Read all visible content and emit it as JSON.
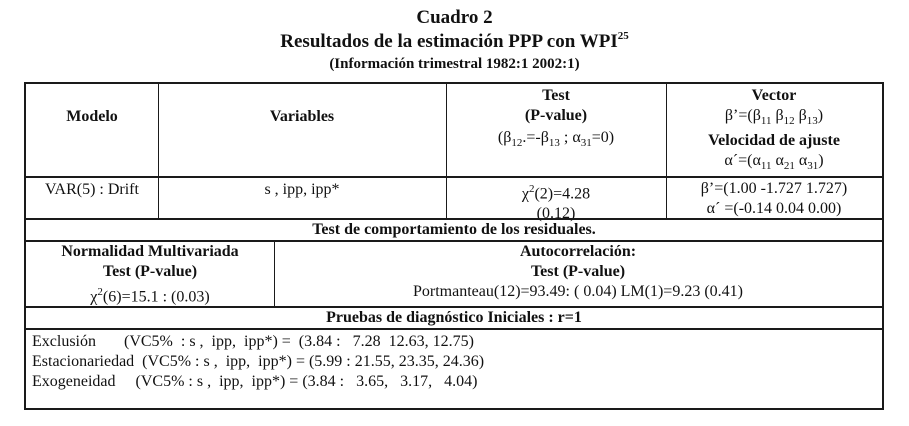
{
  "title": "Cuadro 2",
  "subtitle": "Resultados de la estimación PPP con WPI",
  "subtitle_footnote": "25",
  "period": "(Información trimestral 1982:1 2002:1)",
  "header": {
    "modelo": "Modelo",
    "variables": "Variables",
    "test_line1": "Test",
    "test_line2": "(P-value)",
    "test_line3": "(β12.=-β13 ; α31=0)",
    "vector_line1": "Vector",
    "vector_line2": "β’=(β11 β12 β13)",
    "vector_line3": "Velocidad de ajuste",
    "vector_line4": "α´=(α11 α21 α31)"
  },
  "row1": {
    "modelo": "VAR(5) : Drift",
    "variables": "s ,  ipp,  ipp*",
    "test_line1": "χ2(2)=4.28",
    "test_line2": "(0.12)",
    "vector_line1": "β’=(1.00  -1.727  1.727)",
    "vector_line2": "α´ =(-0.14  0.04  0.00)"
  },
  "residuales_header": "Test de comportamiento de los residuales.",
  "normalidad": {
    "title": "Normalidad Multivariada",
    "subtitle": "Test (P-value)",
    "value": "χ2(6)=15.1 : (0.03)"
  },
  "autocorrelacion": {
    "title": "Autocorrelación:",
    "subtitle": "Test (P-value)",
    "value": "Portmanteau(12)=93.49: ( 0.04)  LM(1)=9.23 (0.41)"
  },
  "diagnostico_header": "Pruebas de diagnóstico Iniciales  : r=1",
  "diagnostico": [
    "Exclusión       (VC5%  : s ,  ipp,  ipp*) =  (3.84 :   7.28  12.63, 12.75)",
    "Estacionariedad  (VC5% : s ,  ipp,  ipp*) = (5.99 : 21.55, 23.35, 24.36)",
    "Exogeneidad     (VC5% : s ,  ipp,  ipp*) = (3.84 :   3.65,   3.17,   4.04)"
  ]
}
